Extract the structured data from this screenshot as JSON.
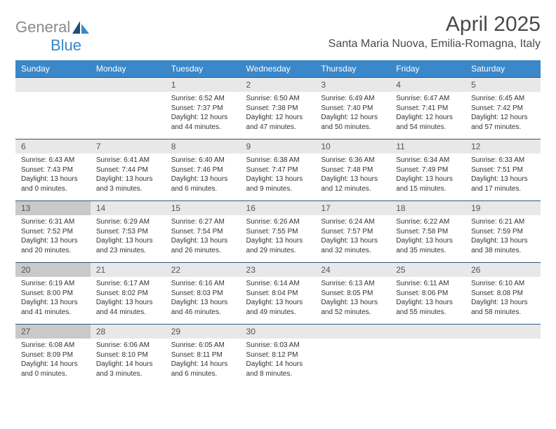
{
  "logo": {
    "word1": "General",
    "word2": "Blue"
  },
  "title": "April 2025",
  "subtitle": "Santa Maria Nuova, Emilia-Romagna, Italy",
  "colors": {
    "header_bg": "#3a87c9",
    "header_text": "#ffffff",
    "daynum_bg": "#e8e8e8",
    "daynum_bg_dark": "#c9c9c9",
    "cell_border_top": "#2b5a82",
    "text": "#333333",
    "title_color": "#4a4a4a",
    "logo_gray": "#8a8a8a",
    "logo_blue": "#3a87c9",
    "logo_dark": "#1f4e79"
  },
  "days_of_week": [
    "Sunday",
    "Monday",
    "Tuesday",
    "Wednesday",
    "Thursday",
    "Friday",
    "Saturday"
  ],
  "weeks": [
    [
      {
        "n": "",
        "sunrise": "",
        "sunset": "",
        "daylight": "",
        "empty": true
      },
      {
        "n": "",
        "sunrise": "",
        "sunset": "",
        "daylight": "",
        "empty": true
      },
      {
        "n": "1",
        "sunrise": "Sunrise: 6:52 AM",
        "sunset": "Sunset: 7:37 PM",
        "daylight": "Daylight: 12 hours and 44 minutes."
      },
      {
        "n": "2",
        "sunrise": "Sunrise: 6:50 AM",
        "sunset": "Sunset: 7:38 PM",
        "daylight": "Daylight: 12 hours and 47 minutes."
      },
      {
        "n": "3",
        "sunrise": "Sunrise: 6:49 AM",
        "sunset": "Sunset: 7:40 PM",
        "daylight": "Daylight: 12 hours and 50 minutes."
      },
      {
        "n": "4",
        "sunrise": "Sunrise: 6:47 AM",
        "sunset": "Sunset: 7:41 PM",
        "daylight": "Daylight: 12 hours and 54 minutes."
      },
      {
        "n": "5",
        "sunrise": "Sunrise: 6:45 AM",
        "sunset": "Sunset: 7:42 PM",
        "daylight": "Daylight: 12 hours and 57 minutes."
      }
    ],
    [
      {
        "n": "6",
        "sunrise": "Sunrise: 6:43 AM",
        "sunset": "Sunset: 7:43 PM",
        "daylight": "Daylight: 13 hours and 0 minutes."
      },
      {
        "n": "7",
        "sunrise": "Sunrise: 6:41 AM",
        "sunset": "Sunset: 7:44 PM",
        "daylight": "Daylight: 13 hours and 3 minutes."
      },
      {
        "n": "8",
        "sunrise": "Sunrise: 6:40 AM",
        "sunset": "Sunset: 7:46 PM",
        "daylight": "Daylight: 13 hours and 6 minutes."
      },
      {
        "n": "9",
        "sunrise": "Sunrise: 6:38 AM",
        "sunset": "Sunset: 7:47 PM",
        "daylight": "Daylight: 13 hours and 9 minutes."
      },
      {
        "n": "10",
        "sunrise": "Sunrise: 6:36 AM",
        "sunset": "Sunset: 7:48 PM",
        "daylight": "Daylight: 13 hours and 12 minutes."
      },
      {
        "n": "11",
        "sunrise": "Sunrise: 6:34 AM",
        "sunset": "Sunset: 7:49 PM",
        "daylight": "Daylight: 13 hours and 15 minutes."
      },
      {
        "n": "12",
        "sunrise": "Sunrise: 6:33 AM",
        "sunset": "Sunset: 7:51 PM",
        "daylight": "Daylight: 13 hours and 17 minutes."
      }
    ],
    [
      {
        "n": "13",
        "sunrise": "Sunrise: 6:31 AM",
        "sunset": "Sunset: 7:52 PM",
        "daylight": "Daylight: 13 hours and 20 minutes.",
        "dark": true
      },
      {
        "n": "14",
        "sunrise": "Sunrise: 6:29 AM",
        "sunset": "Sunset: 7:53 PM",
        "daylight": "Daylight: 13 hours and 23 minutes."
      },
      {
        "n": "15",
        "sunrise": "Sunrise: 6:27 AM",
        "sunset": "Sunset: 7:54 PM",
        "daylight": "Daylight: 13 hours and 26 minutes."
      },
      {
        "n": "16",
        "sunrise": "Sunrise: 6:26 AM",
        "sunset": "Sunset: 7:55 PM",
        "daylight": "Daylight: 13 hours and 29 minutes."
      },
      {
        "n": "17",
        "sunrise": "Sunrise: 6:24 AM",
        "sunset": "Sunset: 7:57 PM",
        "daylight": "Daylight: 13 hours and 32 minutes."
      },
      {
        "n": "18",
        "sunrise": "Sunrise: 6:22 AM",
        "sunset": "Sunset: 7:58 PM",
        "daylight": "Daylight: 13 hours and 35 minutes."
      },
      {
        "n": "19",
        "sunrise": "Sunrise: 6:21 AM",
        "sunset": "Sunset: 7:59 PM",
        "daylight": "Daylight: 13 hours and 38 minutes."
      }
    ],
    [
      {
        "n": "20",
        "sunrise": "Sunrise: 6:19 AM",
        "sunset": "Sunset: 8:00 PM",
        "daylight": "Daylight: 13 hours and 41 minutes.",
        "dark": true
      },
      {
        "n": "21",
        "sunrise": "Sunrise: 6:17 AM",
        "sunset": "Sunset: 8:02 PM",
        "daylight": "Daylight: 13 hours and 44 minutes."
      },
      {
        "n": "22",
        "sunrise": "Sunrise: 6:16 AM",
        "sunset": "Sunset: 8:03 PM",
        "daylight": "Daylight: 13 hours and 46 minutes."
      },
      {
        "n": "23",
        "sunrise": "Sunrise: 6:14 AM",
        "sunset": "Sunset: 8:04 PM",
        "daylight": "Daylight: 13 hours and 49 minutes."
      },
      {
        "n": "24",
        "sunrise": "Sunrise: 6:13 AM",
        "sunset": "Sunset: 8:05 PM",
        "daylight": "Daylight: 13 hours and 52 minutes."
      },
      {
        "n": "25",
        "sunrise": "Sunrise: 6:11 AM",
        "sunset": "Sunset: 8:06 PM",
        "daylight": "Daylight: 13 hours and 55 minutes."
      },
      {
        "n": "26",
        "sunrise": "Sunrise: 6:10 AM",
        "sunset": "Sunset: 8:08 PM",
        "daylight": "Daylight: 13 hours and 58 minutes."
      }
    ],
    [
      {
        "n": "27",
        "sunrise": "Sunrise: 6:08 AM",
        "sunset": "Sunset: 8:09 PM",
        "daylight": "Daylight: 14 hours and 0 minutes.",
        "dark": true
      },
      {
        "n": "28",
        "sunrise": "Sunrise: 6:06 AM",
        "sunset": "Sunset: 8:10 PM",
        "daylight": "Daylight: 14 hours and 3 minutes."
      },
      {
        "n": "29",
        "sunrise": "Sunrise: 6:05 AM",
        "sunset": "Sunset: 8:11 PM",
        "daylight": "Daylight: 14 hours and 6 minutes."
      },
      {
        "n": "30",
        "sunrise": "Sunrise: 6:03 AM",
        "sunset": "Sunset: 8:12 PM",
        "daylight": "Daylight: 14 hours and 8 minutes."
      },
      {
        "n": "",
        "sunrise": "",
        "sunset": "",
        "daylight": "",
        "empty": true
      },
      {
        "n": "",
        "sunrise": "",
        "sunset": "",
        "daylight": "",
        "empty": true
      },
      {
        "n": "",
        "sunrise": "",
        "sunset": "",
        "daylight": "",
        "empty": true
      }
    ]
  ]
}
